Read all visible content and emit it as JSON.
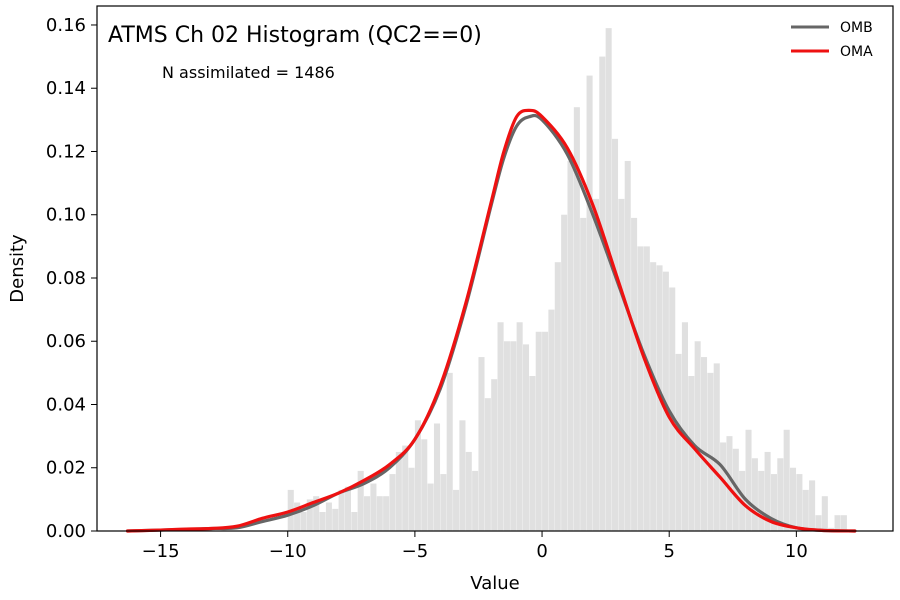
{
  "chart_data": {
    "type": "bar",
    "title": "ATMS Ch 02 Histogram (QC2==0)",
    "annotation": "N assimilated = 1486",
    "xlabel": "Value",
    "ylabel": "Density",
    "xlim": [
      -17.5,
      13.8
    ],
    "ylim": [
      0,
      0.166
    ],
    "xticks": [
      -15,
      -10,
      -5,
      0,
      5,
      10
    ],
    "yticks": [
      0.0,
      0.02,
      0.04,
      0.06,
      0.08,
      0.1,
      0.12,
      0.14,
      0.16
    ],
    "legend_position": "upper right",
    "histogram": {
      "color": "#e0e0e0",
      "bin_edges_start": -10.0,
      "bin_width": 0.25,
      "densities": [
        0.013,
        0.009,
        0.006,
        0.01,
        0.011,
        0.006,
        0.009,
        0.007,
        0.013,
        0.014,
        0.006,
        0.019,
        0.011,
        0.015,
        0.011,
        0.011,
        0.018,
        0.025,
        0.027,
        0.02,
        0.035,
        0.029,
        0.015,
        0.034,
        0.018,
        0.05,
        0.013,
        0.035,
        0.025,
        0.019,
        0.055,
        0.042,
        0.048,
        0.066,
        0.06,
        0.06,
        0.066,
        0.059,
        0.049,
        0.063,
        0.063,
        0.07,
        0.085,
        0.1,
        0.117,
        0.134,
        0.099,
        0.144,
        0.105,
        0.15,
        0.159,
        0.124,
        0.105,
        0.117,
        0.099,
        0.09,
        0.09,
        0.085,
        0.084,
        0.082,
        0.077,
        0.056,
        0.066,
        0.049,
        0.06,
        0.055,
        0.05,
        0.053,
        0.028,
        0.03,
        0.026,
        0.019,
        0.032,
        0.023,
        0.019,
        0.025,
        0.018,
        0.023,
        0.032,
        0.02,
        0.018,
        0.013,
        0.016,
        0.005,
        0.011,
        0.001,
        0.005,
        0.005
      ],
      "note_ignore": ""
    },
    "series": [
      {
        "name": "OMB",
        "color": "#666666",
        "x": [
          -16.3,
          -15,
          -14,
          -13,
          -12,
          -11,
          -10,
          -9,
          -8,
          -7,
          -6,
          -5,
          -4,
          -3,
          -2,
          -1.5,
          -1,
          -0.5,
          0,
          1,
          2,
          3,
          4,
          5,
          6,
          7,
          8,
          9,
          10,
          11,
          12.3
        ],
        "y": [
          0.0,
          0.0003,
          0.0005,
          0.0008,
          0.001,
          0.003,
          0.005,
          0.008,
          0.012,
          0.015,
          0.02,
          0.029,
          0.045,
          0.071,
          0.103,
          0.118,
          0.128,
          0.131,
          0.13,
          0.119,
          0.1,
          0.078,
          0.056,
          0.038,
          0.027,
          0.021,
          0.01,
          0.004,
          0.001,
          0.0002,
          0.0
        ]
      },
      {
        "name": "OMA",
        "color": "#ee1111",
        "x": [
          -16.3,
          -15,
          -14,
          -13,
          -12,
          -11,
          -10,
          -9,
          -8,
          -7,
          -6,
          -5,
          -4,
          -3,
          -2,
          -1.5,
          -1,
          -0.5,
          0,
          1,
          2,
          3,
          4,
          5,
          6,
          7,
          8,
          9,
          10,
          11,
          12.3
        ],
        "y": [
          0.0,
          0.0003,
          0.0006,
          0.0008,
          0.0015,
          0.004,
          0.006,
          0.009,
          0.012,
          0.016,
          0.021,
          0.029,
          0.046,
          0.072,
          0.104,
          0.12,
          0.131,
          0.133,
          0.131,
          0.121,
          0.103,
          0.079,
          0.055,
          0.036,
          0.026,
          0.017,
          0.008,
          0.003,
          0.001,
          0.0002,
          0.0
        ]
      }
    ]
  }
}
